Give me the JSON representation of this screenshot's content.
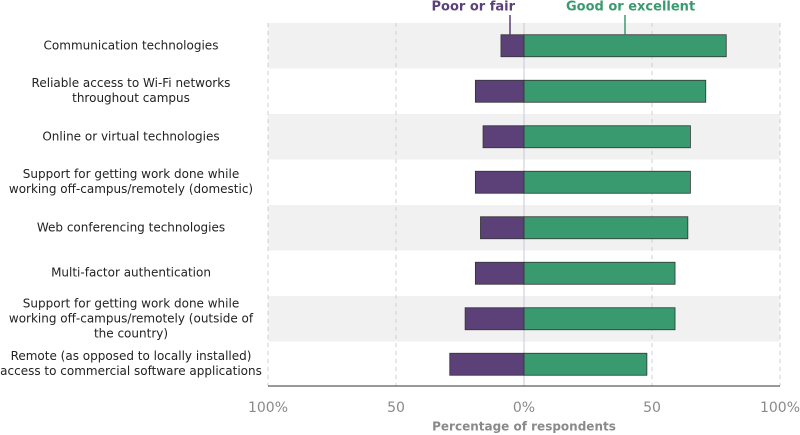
{
  "chart_data": {
    "type": "diverging-bar",
    "categories": [
      "Communication technologies",
      "Reliable access to Wi-Fi networks throughout campus",
      "Online or virtual technologies",
      "Support for getting work done while working off-campus/remotely (domestic)",
      "Web conferencing technologies",
      "Multi-factor authentication",
      "Support for getting work done while working off-campus/remotely (outside of the country)",
      "Remote (as opposed to locally installed) access to commercial software applications"
    ],
    "series": [
      {
        "name": "Poor or fair",
        "color": "#5b4178",
        "values": [
          -9,
          -19,
          -16,
          -19,
          -17,
          -19,
          -23,
          -29
        ]
      },
      {
        "name": "Good or excellent",
        "color": "#3a9a6f",
        "values": [
          79,
          71,
          65,
          65,
          64,
          59,
          59,
          48
        ]
      }
    ],
    "xlabel": "Percentage of respondents",
    "xlim": [
      -100,
      100
    ],
    "xticks": [
      {
        "value": -100,
        "label": "100%"
      },
      {
        "value": -50,
        "label": "50"
      },
      {
        "value": 0,
        "label": "0%"
      },
      {
        "value": 50,
        "label": "50"
      },
      {
        "value": 100,
        "label": "100%"
      }
    ],
    "grid": true
  }
}
